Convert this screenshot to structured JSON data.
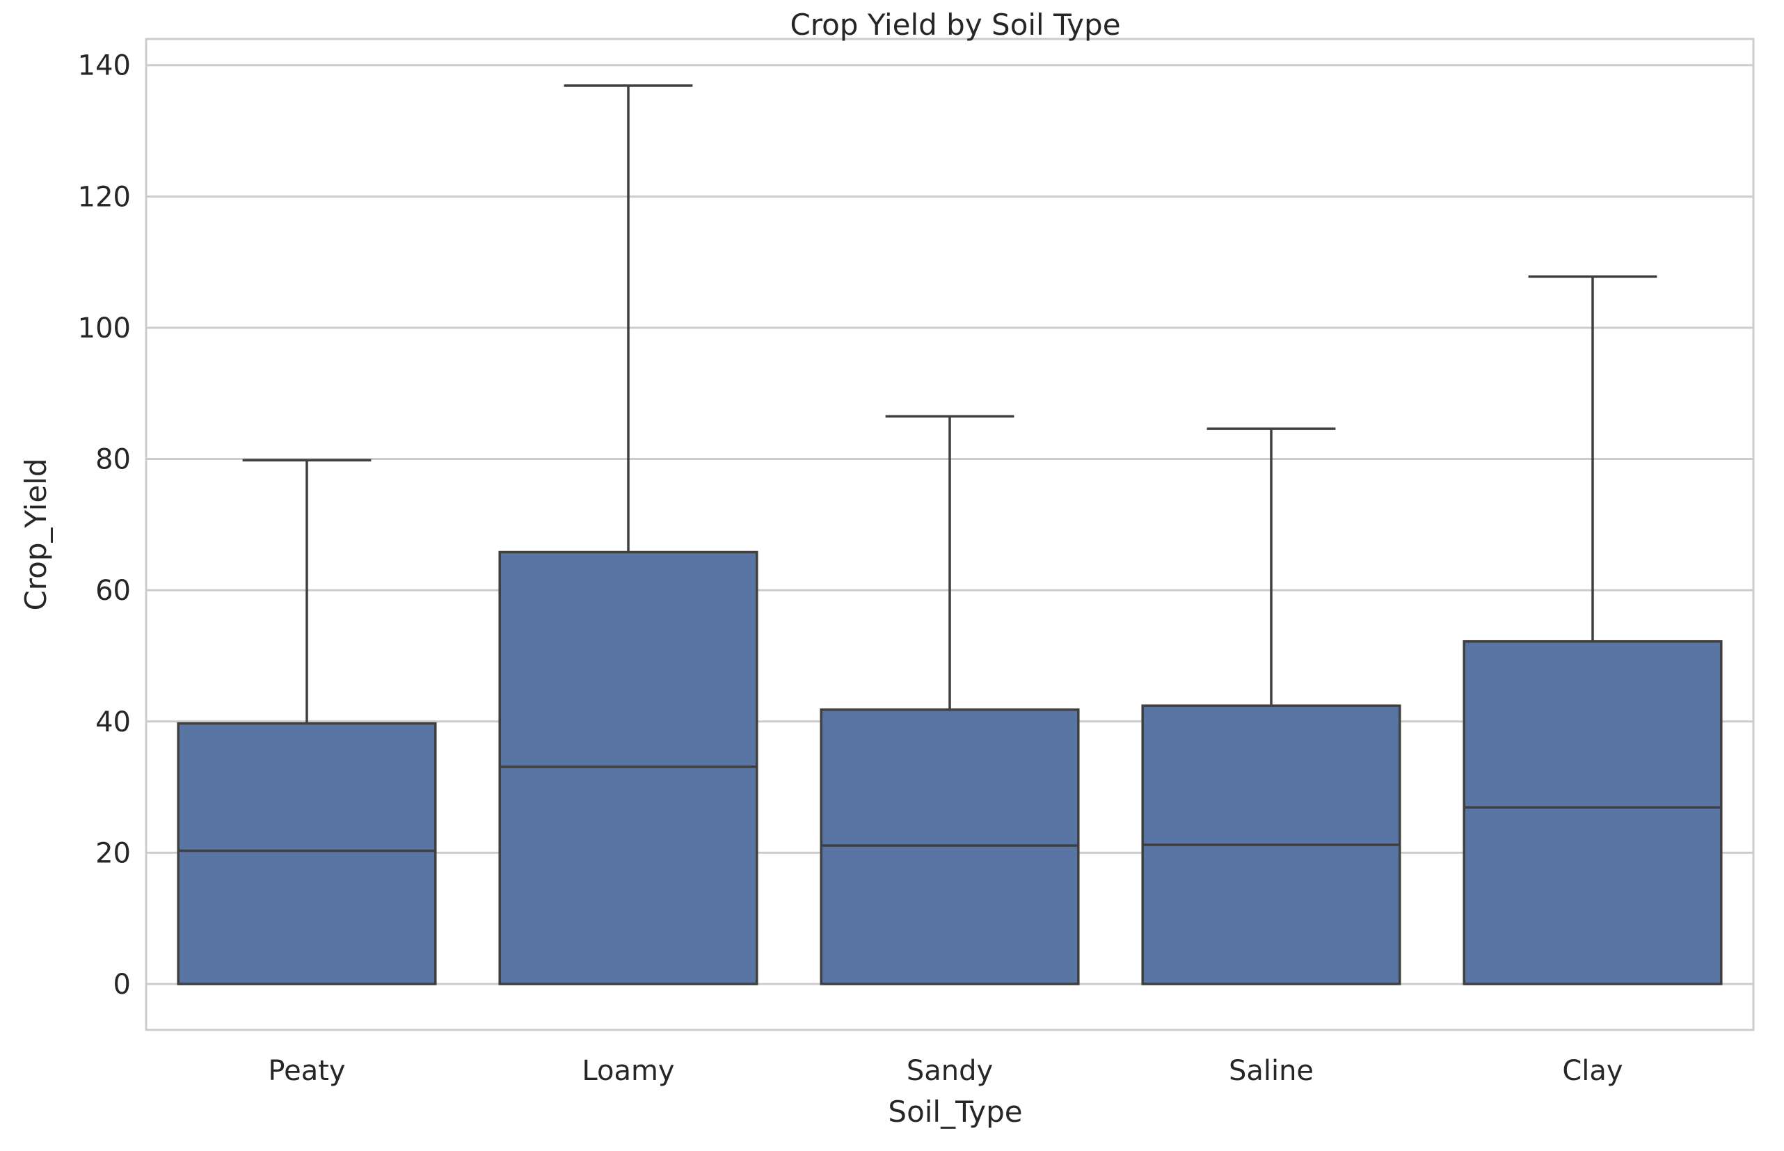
{
  "chart_data": {
    "type": "box",
    "title": "Crop Yield by Soil Type",
    "xlabel": "Soil_Type",
    "ylabel": "Crop_Yield",
    "categories": [
      "Peaty",
      "Loamy",
      "Sandy",
      "Saline",
      "Clay"
    ],
    "boxes": [
      {
        "category": "Peaty",
        "min": 0,
        "q1": 0,
        "median": 20.3,
        "q3": 39.7,
        "max": 79.8
      },
      {
        "category": "Loamy",
        "min": 0,
        "q1": 0,
        "median": 33.1,
        "q3": 65.8,
        "max": 136.9
      },
      {
        "category": "Sandy",
        "min": 0,
        "q1": 0,
        "median": 21.1,
        "q3": 41.8,
        "max": 86.5
      },
      {
        "category": "Saline",
        "min": 0,
        "q1": 0,
        "median": 21.2,
        "q3": 42.4,
        "max": 84.6
      },
      {
        "category": "Clay",
        "min": 0,
        "q1": 0,
        "median": 26.9,
        "q3": 52.2,
        "max": 107.8
      }
    ],
    "yticks": [
      0,
      20,
      40,
      60,
      80,
      100,
      120,
      140
    ],
    "ylim": [
      -7,
      144
    ],
    "grid": "horizontal",
    "colors": {
      "box_fill": "#5975a4",
      "box_edge": "#3f3f3f",
      "grid": "#cccccc",
      "text": "#262626"
    }
  }
}
